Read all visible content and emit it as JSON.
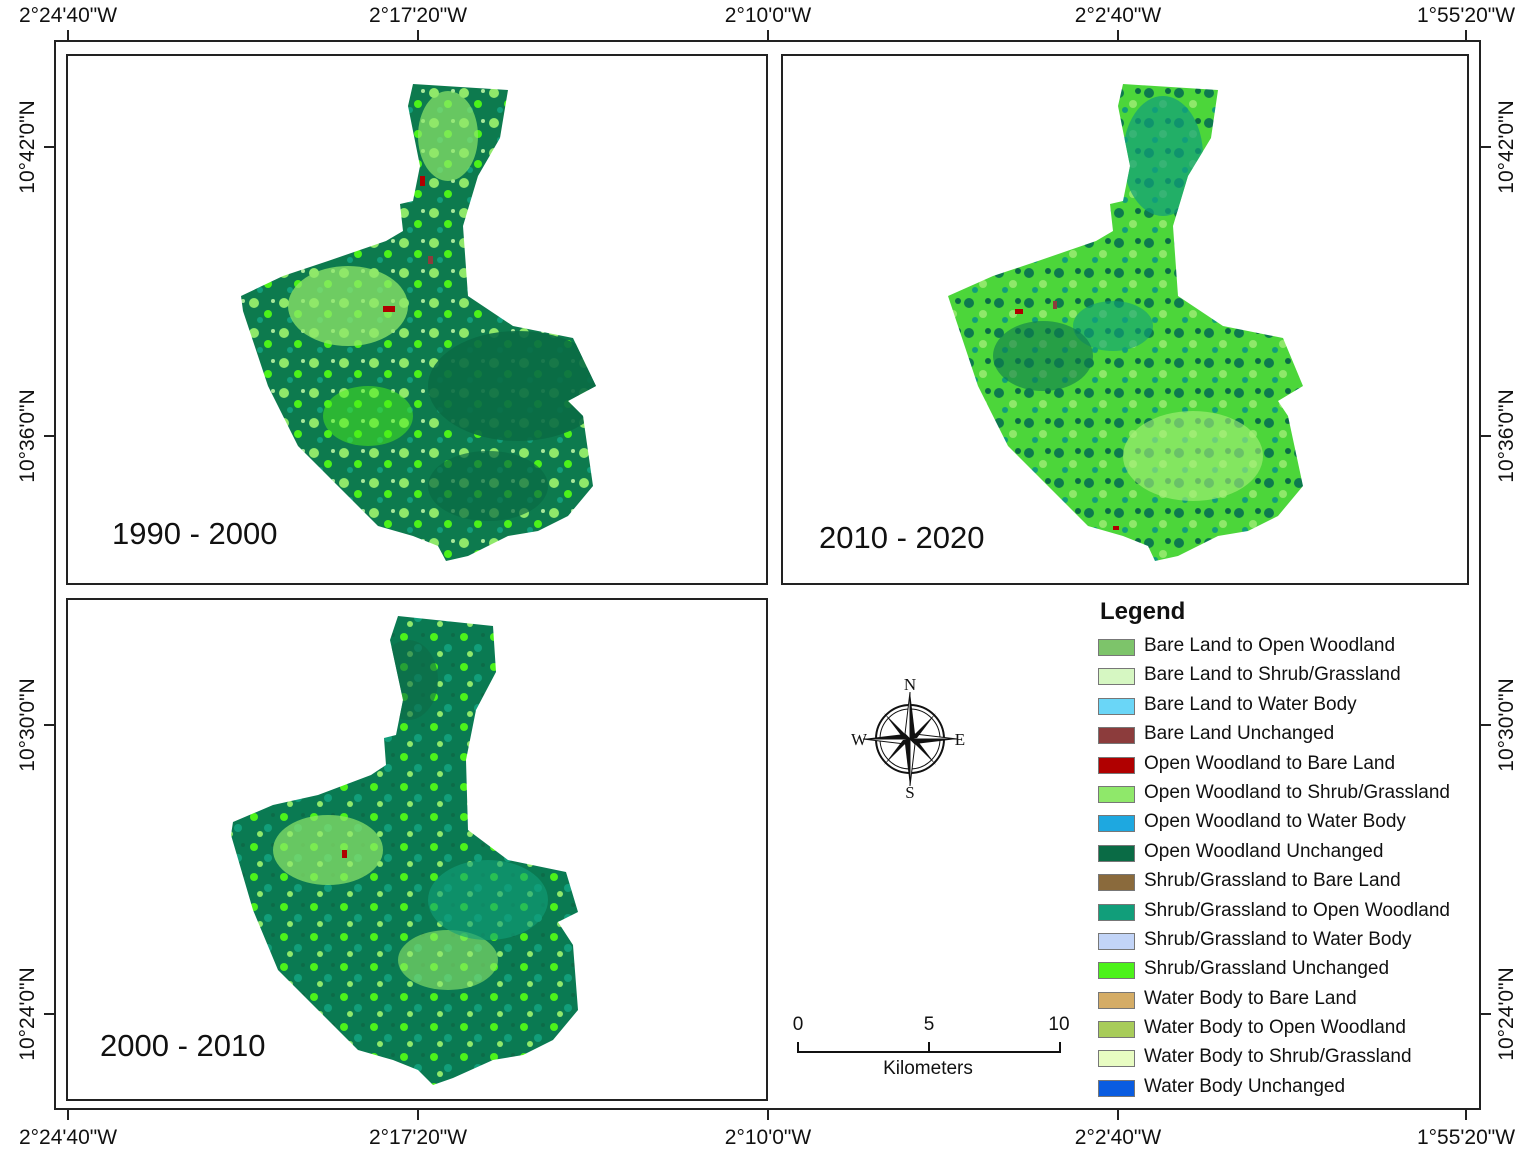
{
  "map": {
    "top_ticks": [
      "2°24'40\"W",
      "2°17'20\"W",
      "2°10'0\"W",
      "2°2'40\"W",
      "1°55'20\"W"
    ],
    "bottom_ticks": [
      "2°24'40\"W",
      "2°17'20\"W",
      "2°10'0\"W",
      "2°2'40\"W",
      "1°55'20\"W"
    ],
    "left_ticks": [
      "10°42'0\"N",
      "10°36'0\"N",
      "10°30'0\"N",
      "10°24'0\"N"
    ],
    "right_ticks": [
      "10°42'0\"N",
      "10°36'0\"N",
      "10°30'0\"N",
      "10°24'0\"N"
    ]
  },
  "panels": {
    "p1990": {
      "label": "1990 - 2000"
    },
    "p2010": {
      "label": "2010 - 2020"
    },
    "p2000": {
      "label": "2000 - 2010"
    }
  },
  "compass": {
    "n": "N",
    "s": "S",
    "e": "E",
    "w": "W"
  },
  "scale": {
    "n0": "0",
    "n5": "5",
    "n10": "10",
    "unit": "Kilometers"
  },
  "legend": {
    "title": "Legend",
    "items": [
      {
        "label": "Bare Land to Open Woodland",
        "color": "#7dc46a"
      },
      {
        "label": "Bare Land to Shrub/Grassland",
        "color": "#d6f7c2"
      },
      {
        "label": "Bare Land to Water Body",
        "color": "#6ad6f7"
      },
      {
        "label": "Bare Land Unchanged",
        "color": "#8c3c3c"
      },
      {
        "label": "Open Woodland to Bare Land",
        "color": "#b00000"
      },
      {
        "label": "Open Woodland to Shrub/Grassland",
        "color": "#8fe86a"
      },
      {
        "label": "Open Woodland to Water Body",
        "color": "#1ea8e0"
      },
      {
        "label": "Open Woodland Unchanged",
        "color": "#0a6b45"
      },
      {
        "label": "Shrub/Grassland to Bare Land",
        "color": "#8a6a3c"
      },
      {
        "label": "Shrub/Grassland to Open Woodland",
        "color": "#119e7a"
      },
      {
        "label": "Shrub/Grassland to Water Body",
        "color": "#c2d4f7"
      },
      {
        "label": "Shrub/Grassland Unchanged",
        "color": "#4cf21a"
      },
      {
        "label": "Water Body to Bare Land",
        "color": "#d4ac66"
      },
      {
        "label": "Water Body to Open Woodland",
        "color": "#a8cc5a"
      },
      {
        "label": "Water Body to Shrub/Grassland",
        "color": "#e8fcc2"
      },
      {
        "label": "Water Body Unchanged",
        "color": "#0a5ce0"
      }
    ]
  }
}
